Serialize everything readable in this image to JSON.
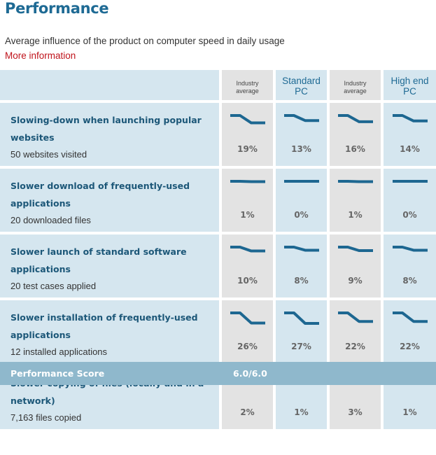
{
  "header": {
    "title": "Performance",
    "subtitle": "Average influence of the product on computer speed in daily usage",
    "more_link": "More information"
  },
  "columns": [
    {
      "label_line1": "Industry",
      "label_line2": "average",
      "style": "small"
    },
    {
      "label_line1": "Standard",
      "label_line2": "PC",
      "style": "big"
    },
    {
      "label_line1": "Industry",
      "label_line2": "average",
      "style": "small"
    },
    {
      "label_line1": "High end",
      "label_line2": "PC",
      "style": "big"
    }
  ],
  "rows": [
    {
      "title": "Slowing-down when launching popular websites",
      "subtitle": "50 websites visited",
      "values": [
        "19%",
        "13%",
        "16%",
        "14%"
      ],
      "impact": [
        19,
        13,
        16,
        14
      ]
    },
    {
      "title": "Slower download of frequently-used applications",
      "subtitle": "20 downloaded files",
      "values": [
        "1%",
        "0%",
        "1%",
        "0%"
      ],
      "impact": [
        1,
        0,
        1,
        0
      ]
    },
    {
      "title": "Slower launch of standard software applications",
      "subtitle": "20 test cases applied",
      "values": [
        "10%",
        "8%",
        "9%",
        "8%"
      ],
      "impact": [
        10,
        8,
        9,
        8
      ]
    },
    {
      "title": "Slower installation of frequently-used applications",
      "subtitle": "12 installed applications",
      "values": [
        "26%",
        "27%",
        "22%",
        "22%"
      ],
      "impact": [
        26,
        27,
        22,
        22
      ]
    },
    {
      "title": "Slower copying of files (locally and in a network)",
      "subtitle": "7,163 files copied",
      "values": [
        "2%",
        "1%",
        "3%",
        "1%"
      ],
      "impact": [
        2,
        1,
        3,
        1
      ]
    }
  ],
  "footer": {
    "label": "Performance Score",
    "value": "6.0/6.0"
  },
  "colors": {
    "title": "#1e6a94",
    "link": "#c0141c",
    "spark_line": "#1d6791",
    "label_bg": "#d5e6ef",
    "industry_bg": "#e3e3e3",
    "footer_bg": "#8fb8cc"
  }
}
